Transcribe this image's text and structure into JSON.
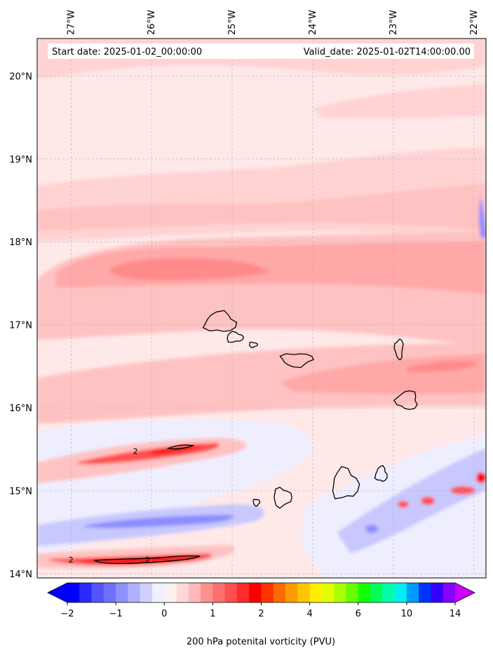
{
  "figure": {
    "start_date_text": "Start date: 2025-01-02_00:00:00",
    "valid_date_text": "Valid_date: 2025-01-02T14:00:00.00",
    "colorbar_title": "200 hPa potenital vorticity (PVU)"
  },
  "map": {
    "lon_range": [
      -27.42,
      -21.85
    ],
    "lat_range": [
      13.95,
      20.45
    ],
    "lon_ticks": [
      {
        "value": -27,
        "label": "27°W"
      },
      {
        "value": -26,
        "label": "26°W"
      },
      {
        "value": -25,
        "label": "25°W"
      },
      {
        "value": -24,
        "label": "24°W"
      },
      {
        "value": -23,
        "label": "23°W"
      },
      {
        "value": -22,
        "label": "22°W"
      }
    ],
    "lat_ticks": [
      {
        "value": 20,
        "label": "20°N"
      },
      {
        "value": 19,
        "label": "19°N"
      },
      {
        "value": 18,
        "label": "18°N"
      },
      {
        "value": 17,
        "label": "17°N"
      },
      {
        "value": 16,
        "label": "16°N"
      },
      {
        "value": 15,
        "label": "15°N"
      },
      {
        "value": 14,
        "label": "14°N"
      }
    ],
    "contour_labels": [
      {
        "lon": -26.2,
        "lat": 15.48,
        "text": "2"
      },
      {
        "lon": -27.0,
        "lat": 14.17,
        "text": "2"
      },
      {
        "lon": -26.05,
        "lat": 14.17,
        "text": "2"
      }
    ],
    "islands": [
      {
        "name": "Santo Antão",
        "lon": -25.15,
        "lat": 17.03,
        "rlon": 0.19,
        "rlat": 0.12
      },
      {
        "name": "São Vicente",
        "lon": -24.97,
        "lat": 16.85,
        "rlon": 0.1,
        "rlat": 0.06
      },
      {
        "name": "Santa Luzia",
        "lon": -24.74,
        "lat": 16.76,
        "rlon": 0.05,
        "rlat": 0.03
      },
      {
        "name": "São Nicolau",
        "lon": -24.2,
        "lat": 16.58,
        "rlon": 0.19,
        "rlat": 0.08
      },
      {
        "name": "Sal",
        "lon": -22.93,
        "lat": 16.71,
        "rlon": 0.05,
        "rlat": 0.12
      },
      {
        "name": "Boa Vista",
        "lon": -22.83,
        "lat": 16.09,
        "rlon": 0.13,
        "rlat": 0.11
      },
      {
        "name": "Maio",
        "lon": -23.15,
        "lat": 15.2,
        "rlon": 0.07,
        "rlat": 0.09
      },
      {
        "name": "Santiago",
        "lon": -23.6,
        "lat": 15.08,
        "rlon": 0.16,
        "rlat": 0.18
      },
      {
        "name": "Fogo",
        "lon": -24.38,
        "lat": 14.92,
        "rlon": 0.11,
        "rlat": 0.11
      },
      {
        "name": "Brava",
        "lon": -24.7,
        "lat": 14.86,
        "rlon": 0.04,
        "rlat": 0.04
      }
    ]
  },
  "colorbar": {
    "levels": [
      -2,
      -1.75,
      -1.5,
      -1.25,
      -1,
      -0.75,
      -0.5,
      -0.25,
      0,
      0.25,
      0.5,
      0.75,
      1,
      1.25,
      1.5,
      1.75,
      2,
      2.5,
      3,
      3.5,
      4,
      4.5,
      5,
      5.5,
      6,
      7,
      8,
      9,
      10,
      11,
      12,
      13,
      14
    ],
    "colors": [
      "#0000ff",
      "#2a2aff",
      "#5555ff",
      "#7070ff",
      "#9090ff",
      "#b0b0ff",
      "#d0d0ff",
      "#f0f0ff",
      "#fff0f0",
      "#ffd8d8",
      "#ffb8b8",
      "#ff9090",
      "#ff6e6e",
      "#ff5050",
      "#ff2a2a",
      "#ff0000",
      "#ff3300",
      "#ff6a00",
      "#ff9a00",
      "#ffc400",
      "#ffee00",
      "#e6ff00",
      "#aaff00",
      "#66ff00",
      "#11ff00",
      "#00ff55",
      "#00ffaa",
      "#00eeee",
      "#0099ff",
      "#0033ff",
      "#3300ff",
      "#8800ff",
      "#cc00ff"
    ],
    "extend_low_color": "#0000ff",
    "extend_high_color": "#cc00ff",
    "ticks": [
      {
        "level_index": 0,
        "label": "−2"
      },
      {
        "level_index": 4,
        "label": "−1"
      },
      {
        "level_index": 8,
        "label": "0"
      },
      {
        "level_index": 12,
        "label": "1"
      },
      {
        "level_index": 16,
        "label": "2"
      },
      {
        "level_index": 20,
        "label": "4"
      },
      {
        "level_index": 24,
        "label": "6"
      },
      {
        "level_index": 28,
        "label": "10"
      },
      {
        "level_index": 32,
        "label": "14"
      }
    ]
  },
  "fields": {
    "background_color": "#ffe8e8",
    "bands": [
      {
        "name": "pink-band-north",
        "color": "#ffd3d3"
      },
      {
        "name": "mid-band",
        "color": "#ffc2c2"
      },
      {
        "name": "strong-band",
        "color": "#ffa8a8"
      },
      {
        "name": "core-band",
        "color": "#ff8a8a"
      },
      {
        "name": "blue-light",
        "color": "#eeeeff"
      },
      {
        "name": "blue-mid",
        "color": "#c8c8ff"
      },
      {
        "name": "blue-strong",
        "color": "#8c8cff"
      },
      {
        "name": "red-strong",
        "color": "#ff5050"
      },
      {
        "name": "red-core",
        "color": "#ff0000"
      }
    ]
  }
}
